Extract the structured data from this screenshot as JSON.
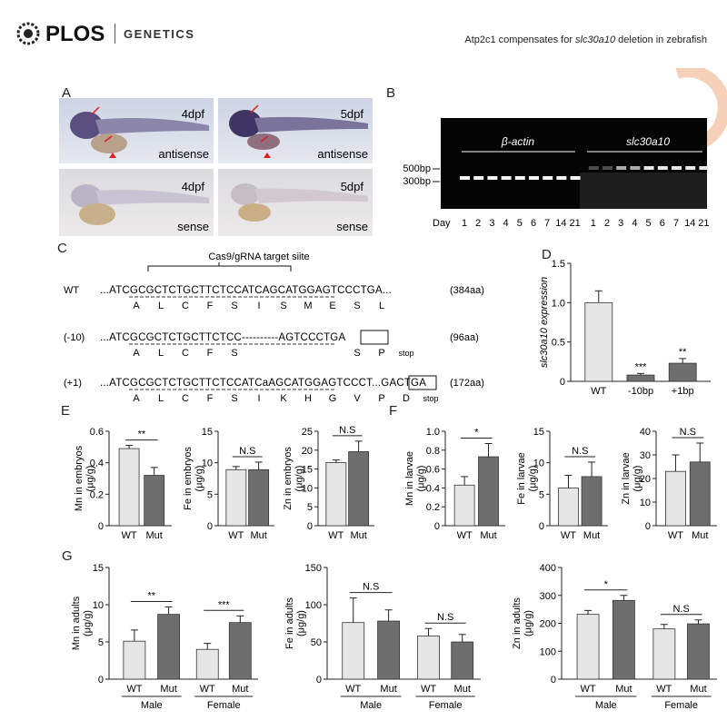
{
  "header": {
    "publisher": "PLOS",
    "journal": "GENETICS",
    "running_title_prefix": "Atp2c1 compensates for ",
    "running_title_gene": "slc30a10",
    "running_title_suffix": " deletion in zebrafish"
  },
  "panel_labels": [
    "A",
    "B",
    "C",
    "D",
    "E",
    "F",
    "G"
  ],
  "panelA": {
    "images": [
      {
        "day": "4dpf",
        "probe": "antisense"
      },
      {
        "day": "5dpf",
        "probe": "antisense"
      },
      {
        "day": "4dpf",
        "probe": "sense"
      },
      {
        "day": "5dpf",
        "probe": "sense"
      }
    ]
  },
  "panelB": {
    "gene1": "β-actin",
    "gene2": "slc30a10",
    "ladder": [
      "500bp",
      "300bp"
    ],
    "day_label": "Day",
    "days": [
      "1",
      "2",
      "3",
      "4",
      "5",
      "6",
      "7",
      "14",
      "21",
      "1",
      "2",
      "3",
      "4",
      "5",
      "6",
      "7",
      "14",
      "21"
    ]
  },
  "panelC": {
    "target_label": "Cas9/gRNA target siite",
    "rows": [
      {
        "name": "WT",
        "seq": "...ATCGCGCTCTGCTTCTCCATCAGCATGGAGTCCCTGA...",
        "aa": [
          "A",
          "L",
          "C",
          "F",
          "S",
          "I",
          "S",
          "M",
          "E",
          "S",
          "L"
        ],
        "len": "(384aa)"
      },
      {
        "name": "(-10)",
        "seq": "...ATCGCGCTCTGCTTCTCC----------AGTCCCTGA",
        "aa": [
          "A",
          "L",
          "C",
          "F",
          "S",
          "",
          "",
          "",
          "",
          "S",
          "P",
          "stop"
        ],
        "len": "(96aa)"
      },
      {
        "name": "(+1)",
        "seq": "...ATCGCGCTCTGCTTCTCCATCaAGCATGGAGTCCCT...GACTGA",
        "aa": [
          "A",
          "L",
          "C",
          "F",
          "S",
          "I",
          "K",
          "H",
          "G",
          "V",
          "P",
          "D",
          "stop"
        ],
        "len": "(172aa)"
      }
    ]
  },
  "chart_data": [
    {
      "panel": "D",
      "type": "bar",
      "categories": [
        "WT",
        "-10bp",
        "+1bp"
      ],
      "values": [
        1.0,
        0.08,
        0.23
      ],
      "errors": [
        0.15,
        0.02,
        0.06
      ],
      "sig": [
        "",
        "***",
        "**"
      ],
      "ylabel": "slc30a10 expression",
      "ylim": [
        0,
        1.5
      ],
      "yticks": [
        "0",
        "0.5",
        "1.0",
        "1.5"
      ]
    },
    {
      "panel": "E",
      "type": "bar",
      "categories": [
        "WT",
        "Mut"
      ],
      "values": [
        0.49,
        0.32
      ],
      "errors": [
        0.02,
        0.05
      ],
      "sig": "**",
      "ylabel": "Mn in embryos (μg/g)",
      "ylim": [
        0,
        0.6
      ],
      "yticks": [
        "0",
        "0.2",
        "0.4",
        "0.6"
      ]
    },
    {
      "panel": "E",
      "type": "bar",
      "categories": [
        "WT",
        "Mut"
      ],
      "values": [
        8.9,
        8.9
      ],
      "errors": [
        0.5,
        1.2
      ],
      "sig": "N.S",
      "ylabel": "Fe in embryos (μg/g)",
      "ylim": [
        0,
        15
      ],
      "yticks": [
        "0",
        "5",
        "10",
        "15"
      ]
    },
    {
      "panel": "E",
      "type": "bar",
      "categories": [
        "WT",
        "Mut"
      ],
      "values": [
        16.7,
        19.6
      ],
      "errors": [
        0.7,
        2.8
      ],
      "sig": "N.S",
      "ylabel": "Zn in embryos (μg/g)",
      "ylim": [
        0,
        25
      ],
      "yticks": [
        "0",
        "5",
        "10",
        "15",
        "20",
        "25"
      ]
    },
    {
      "panel": "F",
      "type": "bar",
      "categories": [
        "WT",
        "Mut"
      ],
      "values": [
        0.43,
        0.73
      ],
      "errors": [
        0.09,
        0.14
      ],
      "sig": "*",
      "ylabel": "Mn in larvae (μg/g)",
      "ylim": [
        0,
        1.0
      ],
      "yticks": [
        "0",
        "0.2",
        "0.4",
        "0.6",
        "0.8",
        "1.0"
      ]
    },
    {
      "panel": "F",
      "type": "bar",
      "categories": [
        "WT",
        "Mut"
      ],
      "values": [
        6.0,
        7.8
      ],
      "errors": [
        2.0,
        2.3
      ],
      "sig": "N.S",
      "ylabel": "Fe in larvae (μg/g)",
      "ylim": [
        0,
        15
      ],
      "yticks": [
        "0",
        "5",
        "10",
        "15"
      ]
    },
    {
      "panel": "F",
      "type": "bar",
      "categories": [
        "WT",
        "Mut"
      ],
      "values": [
        23,
        27
      ],
      "errors": [
        7,
        8
      ],
      "sig": "N.S",
      "ylabel": "Zn in larvae (μg/g)",
      "ylim": [
        0,
        40
      ],
      "yticks": [
        "0",
        "10",
        "20",
        "30",
        "40"
      ]
    },
    {
      "panel": "G",
      "type": "bar",
      "groups": [
        "Male",
        "Female"
      ],
      "categories": [
        "WT",
        "Mut",
        "WT",
        "Mut"
      ],
      "values": [
        5.1,
        8.7,
        4.0,
        7.6
      ],
      "errors": [
        1.5,
        1.0,
        0.8,
        0.9
      ],
      "sig": [
        "**",
        "***"
      ],
      "ylabel": "Mn in adults (μg/g)",
      "ylim": [
        0,
        15
      ],
      "yticks": [
        "0",
        "5",
        "10",
        "15"
      ]
    },
    {
      "panel": "G",
      "type": "bar",
      "groups": [
        "Male",
        "Female"
      ],
      "categories": [
        "WT",
        "Mut",
        "WT",
        "Mut"
      ],
      "values": [
        76,
        78,
        58,
        50
      ],
      "errors": [
        33,
        15,
        10,
        10
      ],
      "sig": [
        "N.S",
        "N.S"
      ],
      "ylabel": "Fe in adults (μg/g)",
      "ylim": [
        0,
        150
      ],
      "yticks": [
        "0",
        "50",
        "100",
        "150"
      ]
    },
    {
      "panel": "G",
      "type": "bar",
      "groups": [
        "Male",
        "Female"
      ],
      "categories": [
        "WT",
        "Mut",
        "WT",
        "Mut"
      ],
      "values": [
        232,
        282,
        180,
        198
      ],
      "errors": [
        14,
        18,
        16,
        14
      ],
      "sig": [
        "*",
        "N.S"
      ],
      "ylabel": "Zn in adults (μg/g)",
      "ylim": [
        0,
        400
      ],
      "yticks": [
        "0",
        "100",
        "200",
        "300",
        "400"
      ]
    }
  ],
  "colors": {
    "wt_bar": "#e6e6e6",
    "mut_bar": "#6e6e6e",
    "accent": "#e8824d",
    "red_arrow": "#e02020"
  }
}
